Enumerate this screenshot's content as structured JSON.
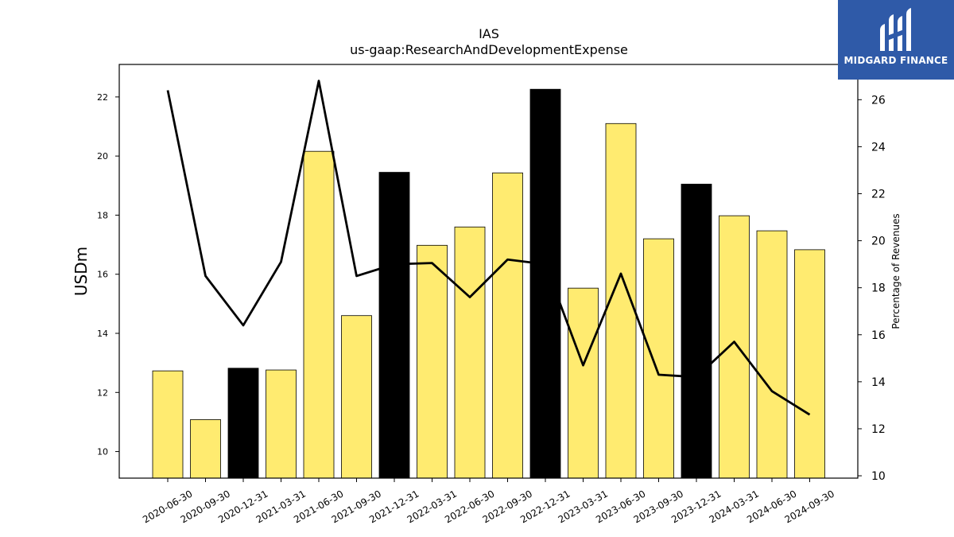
{
  "chart_data": {
    "type": "bar",
    "title": "IAS",
    "subtitle": "us-gaap:ResearchAndDevelopmentExpense",
    "ylabel": "USDm",
    "y2label": "Percentage of Revenues",
    "categories": [
      "2020-06-30",
      "2020-09-30",
      "2020-12-31",
      "2021-03-31",
      "2021-06-30",
      "2021-09-30",
      "2021-12-31",
      "2022-03-31",
      "2022-06-30",
      "2022-09-30",
      "2022-12-31",
      "2023-03-31",
      "2023-06-30",
      "2023-09-30",
      "2023-12-31",
      "2024-03-31",
      "2024-06-30",
      "2024-09-30"
    ],
    "series": [
      {
        "type": "bar",
        "values": [
          12.73,
          11.08,
          12.82,
          12.76,
          20.16,
          14.6,
          19.45,
          16.98,
          17.6,
          19.43,
          22.26,
          15.53,
          21.1,
          17.2,
          19.05,
          17.98,
          17.47,
          16.83
        ]
      },
      {
        "type": "line",
        "axis": "right",
        "values": [
          26.4,
          18.5,
          16.4,
          19.1,
          26.8,
          18.5,
          19.0,
          19.05,
          17.6,
          19.2,
          19.0,
          14.7,
          18.6,
          14.3,
          14.2,
          15.7,
          13.6,
          12.6
        ]
      }
    ],
    "bar_colors": [
      "#ffeb70",
      "#ffeb70",
      "#000000",
      "#ffeb70",
      "#ffeb70",
      "#ffeb70",
      "#000000",
      "#ffeb70",
      "#ffeb70",
      "#ffeb70",
      "#000000",
      "#ffeb70",
      "#ffeb70",
      "#ffeb70",
      "#000000",
      "#ffeb70",
      "#ffeb70",
      "#ffeb70"
    ],
    "line_color": "#000000",
    "ylim": [
      9.1,
      23.1
    ],
    "y_ticks": [
      10,
      12,
      14,
      16,
      18,
      20,
      22
    ],
    "y2lim": [
      9.9,
      27.5
    ],
    "y2_ticks": [
      10,
      12,
      14,
      16,
      18,
      20,
      22,
      24,
      26
    ],
    "grid": false
  },
  "logo": {
    "text": "MIDGARD FINANCE",
    "color": "#2f5aa8"
  }
}
